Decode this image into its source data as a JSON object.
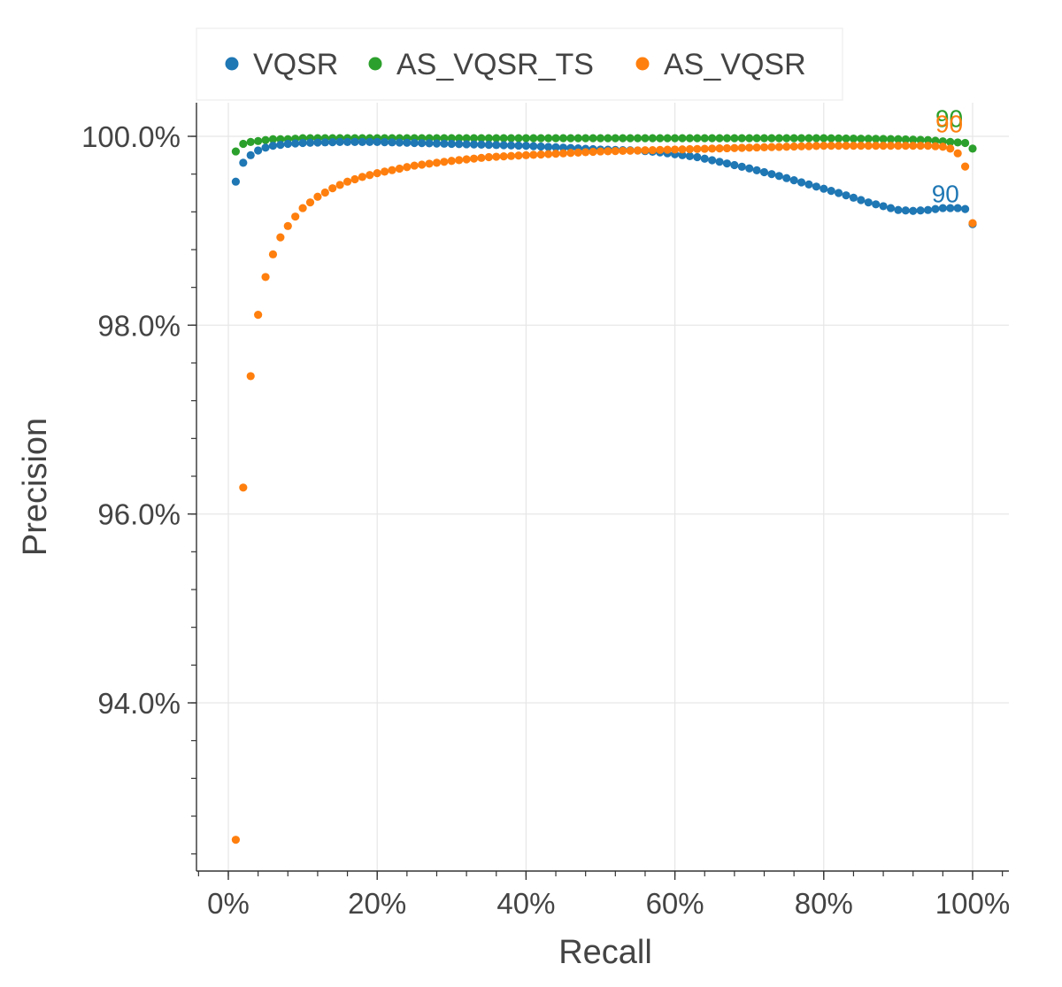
{
  "chart_data": {
    "type": "scatter",
    "xlabel": "Recall",
    "ylabel": "Precision",
    "xlim": [
      -4,
      105
    ],
    "ylim": [
      92.2,
      100.4
    ],
    "x_ticks": [
      {
        "value": 0,
        "label": "0%"
      },
      {
        "value": 20,
        "label": "20%"
      },
      {
        "value": 40,
        "label": "40%"
      },
      {
        "value": 60,
        "label": "60%"
      },
      {
        "value": 80,
        "label": "80%"
      },
      {
        "value": 100,
        "label": "100%"
      }
    ],
    "y_ticks": [
      {
        "value": 94,
        "label": "94.0%"
      },
      {
        "value": 96,
        "label": "96.0%"
      },
      {
        "value": 98,
        "label": "98.0%"
      },
      {
        "value": 100,
        "label": "100.0%"
      }
    ],
    "grid": true,
    "legend_position": "top",
    "series": [
      {
        "name": "VQSR",
        "color": "#1f77b4",
        "points": [
          [
            1,
            99.52
          ],
          [
            2,
            99.72
          ],
          [
            3,
            99.8
          ],
          [
            4,
            99.85
          ],
          [
            5,
            99.88
          ],
          [
            6,
            99.9
          ],
          [
            8,
            99.92
          ],
          [
            10,
            99.93
          ],
          [
            15,
            99.94
          ],
          [
            20,
            99.94
          ],
          [
            25,
            99.93
          ],
          [
            30,
            99.92
          ],
          [
            35,
            99.91
          ],
          [
            40,
            99.9
          ],
          [
            45,
            99.88
          ],
          [
            50,
            99.86
          ],
          [
            55,
            99.85
          ],
          [
            58,
            99.83
          ],
          [
            60,
            99.81
          ],
          [
            63,
            99.78
          ],
          [
            66,
            99.73
          ],
          [
            70,
            99.66
          ],
          [
            74,
            99.58
          ],
          [
            78,
            99.49
          ],
          [
            82,
            99.4
          ],
          [
            86,
            99.3
          ],
          [
            88,
            99.26
          ],
          [
            90,
            99.22
          ],
          [
            92,
            99.21
          ],
          [
            94,
            99.22
          ],
          [
            96,
            99.24
          ],
          [
            98,
            99.24
          ],
          [
            99,
            99.23
          ],
          [
            100,
            99.07
          ]
        ],
        "annotation": {
          "text": "90",
          "x": 94.5,
          "y": 99.3
        }
      },
      {
        "name": "AS_VQSR_TS",
        "color": "#2ca02c",
        "points": [
          [
            1,
            99.84
          ],
          [
            2,
            99.92
          ],
          [
            3,
            99.94
          ],
          [
            4,
            99.95
          ],
          [
            5,
            99.96
          ],
          [
            6,
            99.97
          ],
          [
            8,
            99.97
          ],
          [
            10,
            99.98
          ],
          [
            20,
            99.98
          ],
          [
            40,
            99.98
          ],
          [
            60,
            99.98
          ],
          [
            80,
            99.98
          ],
          [
            90,
            99.97
          ],
          [
            94,
            99.96
          ],
          [
            97,
            99.94
          ],
          [
            99,
            99.93
          ],
          [
            100,
            99.87
          ]
        ],
        "annotation": {
          "text": "90",
          "x": 95,
          "y": 100.1
        }
      },
      {
        "name": "AS_VQSR",
        "color": "#ff7f0e",
        "points": [
          [
            1,
            92.55
          ],
          [
            2,
            96.28
          ],
          [
            3,
            97.46
          ],
          [
            4,
            98.11
          ],
          [
            5,
            98.51
          ],
          [
            6,
            98.75
          ],
          [
            7,
            98.93
          ],
          [
            8,
            99.05
          ],
          [
            9,
            99.15
          ],
          [
            10,
            99.24
          ],
          [
            12,
            99.36
          ],
          [
            14,
            99.45
          ],
          [
            16,
            99.52
          ],
          [
            18,
            99.57
          ],
          [
            20,
            99.61
          ],
          [
            25,
            99.69
          ],
          [
            30,
            99.74
          ],
          [
            35,
            99.78
          ],
          [
            40,
            99.8
          ],
          [
            45,
            99.82
          ],
          [
            50,
            99.84
          ],
          [
            55,
            99.85
          ],
          [
            60,
            99.86
          ],
          [
            65,
            99.87
          ],
          [
            70,
            99.88
          ],
          [
            75,
            99.89
          ],
          [
            80,
            99.9
          ],
          [
            85,
            99.9
          ],
          [
            90,
            99.9
          ],
          [
            94,
            99.9
          ],
          [
            96,
            99.89
          ],
          [
            97,
            99.87
          ],
          [
            98,
            99.82
          ],
          [
            99,
            99.68
          ],
          [
            100,
            99.08
          ]
        ],
        "annotation": {
          "text": "90",
          "x": 95,
          "y": 100.04
        }
      }
    ]
  }
}
